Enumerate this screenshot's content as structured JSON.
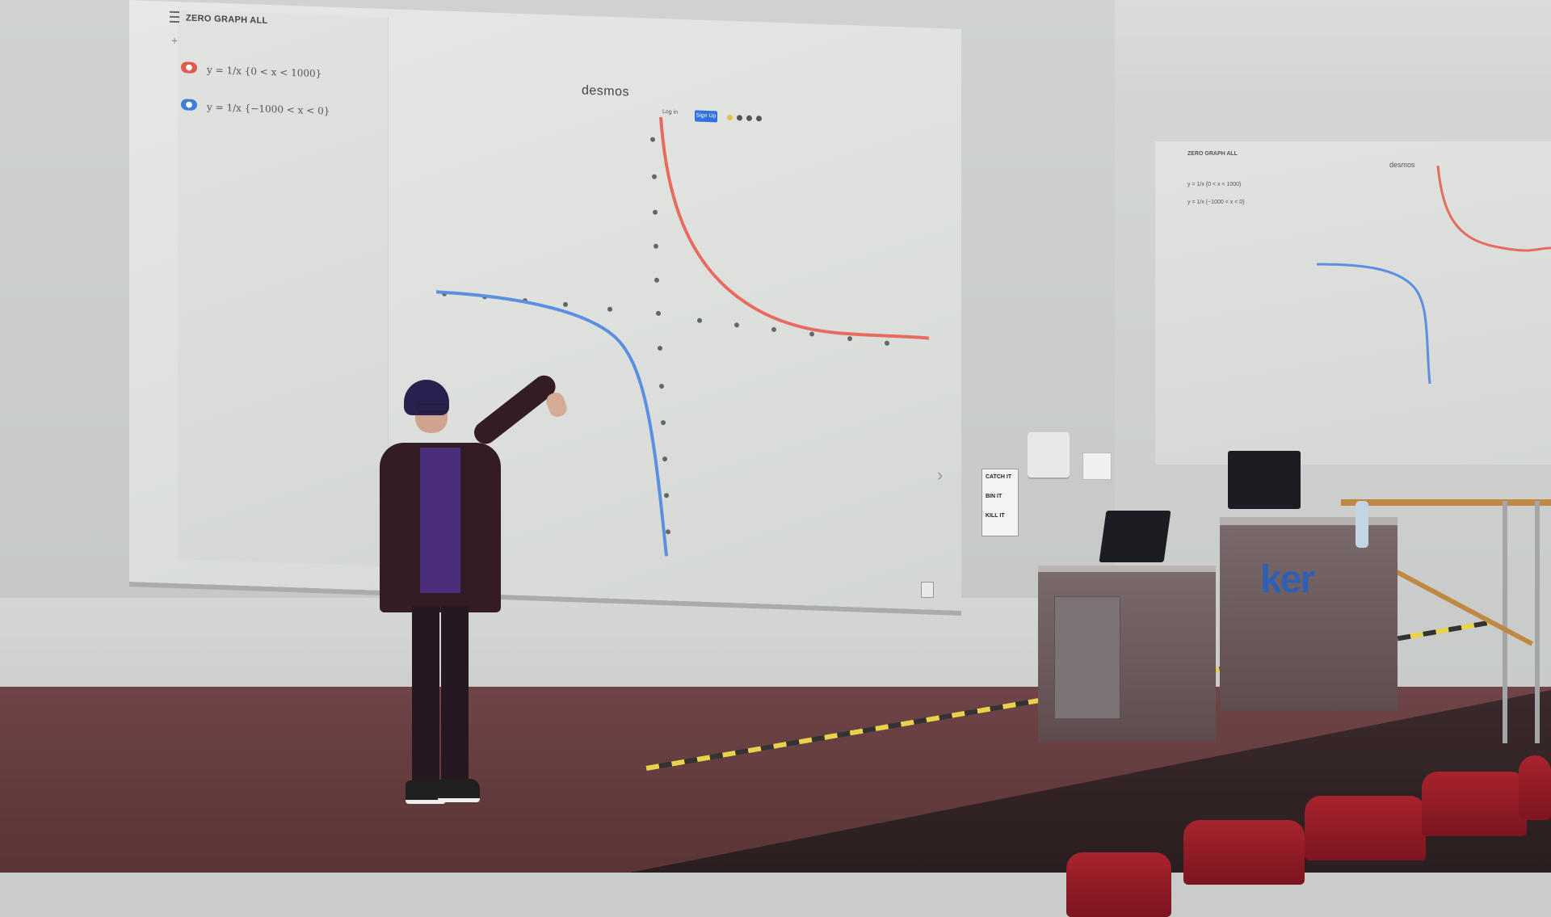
{
  "scene": "lecture-hall-presentation",
  "main_screen": {
    "app_brand": "desmos",
    "toolbar_title": "ZERO GRAPH ALL",
    "expressions": [
      {
        "text": "y = 1/x {0 < x < 1000}",
        "color": "#e05a4e"
      },
      {
        "text": "y = 1/x {−1000 < x < 0}",
        "color": "#3f7fd8"
      }
    ],
    "buttons": {
      "login": "Log in",
      "signup": "Sign Up"
    },
    "curve_colors": {
      "positive": "#e86b5f",
      "negative": "#5b8fe0"
    }
  },
  "side_screen": {
    "app_brand": "desmos",
    "toolbar_title": "ZERO GRAPH ALL",
    "expressions": [
      {
        "text": "y = 1/x {0 < x < 1000}"
      },
      {
        "text": "y = 1/x {−1000 < x < 0}"
      }
    ]
  },
  "sign": {
    "lines": [
      "CATCH IT",
      "BIN IT",
      "KILL IT"
    ]
  },
  "podium_logo": "ker",
  "colors": {
    "stage": "#5f3a3d",
    "seats": "#a8232d",
    "rail": "#c08845",
    "screen": "#e2e4e2"
  }
}
